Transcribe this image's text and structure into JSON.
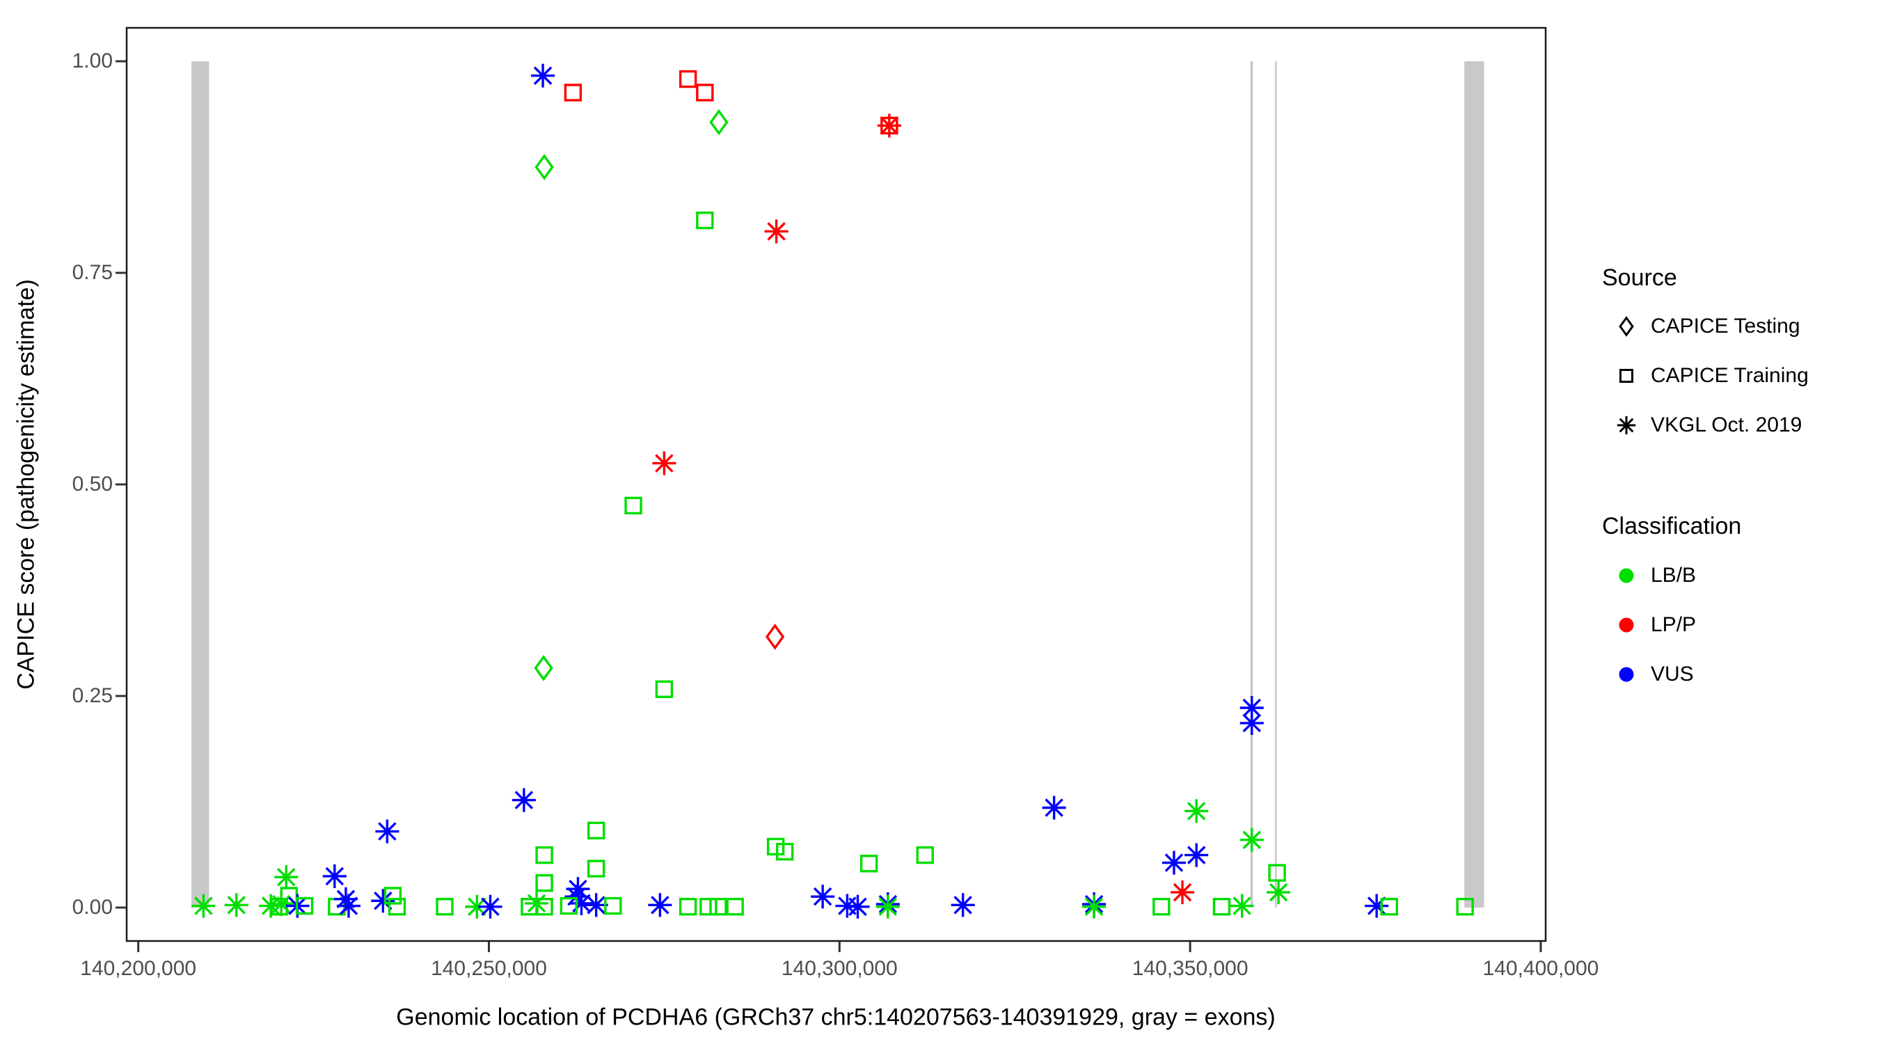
{
  "chart_data": {
    "type": "scatter",
    "title": "",
    "xlabel": "Genomic location of PCDHA6 (GRCh37 chr5:140207563-140391929, gray = exons)",
    "ylabel": "CAPICE score (pathogenicity estimate)",
    "xlim": [
      140198345,
      140400700
    ],
    "ylim": [
      -0.0395,
      1.0395
    ],
    "x_ticks": [
      {
        "value": 140200000,
        "label": "140,200,000"
      },
      {
        "value": 140250000,
        "label": "140,250,000"
      },
      {
        "value": 140300000,
        "label": "140,300,000"
      },
      {
        "value": 140350000,
        "label": "140,350,000"
      },
      {
        "value": 140400000,
        "label": "140,400,000"
      }
    ],
    "y_ticks": [
      {
        "value": 0.0,
        "label": "0.00"
      },
      {
        "value": 0.25,
        "label": "0.25"
      },
      {
        "value": 0.5,
        "label": "0.50"
      },
      {
        "value": 0.75,
        "label": "0.75"
      },
      {
        "value": 1.0,
        "label": "1.00"
      }
    ],
    "grid": false,
    "exon_color": "#c9c9c9",
    "exons": [
      {
        "start": 140207563,
        "end": 140210100
      },
      {
        "start": 140358600,
        "end": 140358950
      },
      {
        "start": 140362100,
        "end": 140362350
      },
      {
        "start": 140389100,
        "end": 140391929
      }
    ],
    "legend": {
      "position": "right",
      "source": {
        "title": "Source",
        "items": [
          {
            "label": "CAPICE Testing",
            "shape": "diamond"
          },
          {
            "label": "CAPICE Training",
            "shape": "square"
          },
          {
            "label": "VKGL Oct. 2019",
            "shape": "asterisk"
          }
        ]
      },
      "classification": {
        "title": "Classification",
        "items": [
          {
            "label": "LB/B",
            "color": "#00de00"
          },
          {
            "label": "LP/P",
            "color": "#ff0000"
          },
          {
            "label": "VUS",
            "color": "#0000ff"
          }
        ]
      }
    },
    "class_colors": {
      "LB/B": "#00de00",
      "LP/P": "#ff0000",
      "VUS": "#0000ff"
    },
    "source_shapes": {
      "testing": "diamond",
      "training": "square",
      "vkgl": "asterisk"
    },
    "points": [
      {
        "x": 140257700,
        "y": 0.983,
        "source": "vkgl",
        "class": "VUS"
      },
      {
        "x": 140262000,
        "y": 0.963,
        "source": "training",
        "class": "LP/P"
      },
      {
        "x": 140278400,
        "y": 0.979,
        "source": "training",
        "class": "LP/P"
      },
      {
        "x": 140280800,
        "y": 0.963,
        "source": "training",
        "class": "LP/P"
      },
      {
        "x": 140282800,
        "y": 0.928,
        "source": "testing",
        "class": "LB/B"
      },
      {
        "x": 140307100,
        "y": 0.924,
        "source": "training",
        "class": "LP/P"
      },
      {
        "x": 140307100,
        "y": 0.924,
        "source": "vkgl",
        "class": "LP/P"
      },
      {
        "x": 140257900,
        "y": 0.875,
        "source": "testing",
        "class": "LB/B"
      },
      {
        "x": 140280800,
        "y": 0.812,
        "source": "training",
        "class": "LB/B"
      },
      {
        "x": 140291000,
        "y": 0.799,
        "source": "vkgl",
        "class": "LP/P"
      },
      {
        "x": 140275000,
        "y": 0.525,
        "source": "vkgl",
        "class": "LP/P"
      },
      {
        "x": 140270600,
        "y": 0.475,
        "source": "training",
        "class": "LB/B"
      },
      {
        "x": 140257800,
        "y": 0.283,
        "source": "testing",
        "class": "LB/B"
      },
      {
        "x": 140275000,
        "y": 0.258,
        "source": "training",
        "class": "LB/B"
      },
      {
        "x": 140290800,
        "y": 0.32,
        "source": "testing",
        "class": "LP/P"
      },
      {
        "x": 140255000,
        "y": 0.127,
        "source": "vkgl",
        "class": "VUS"
      },
      {
        "x": 140235500,
        "y": 0.09,
        "source": "vkgl",
        "class": "VUS"
      },
      {
        "x": 140228000,
        "y": 0.037,
        "source": "vkgl",
        "class": "VUS"
      },
      {
        "x": 140221100,
        "y": 0.036,
        "source": "vkgl",
        "class": "LB/B"
      },
      {
        "x": 140209300,
        "y": 0.002,
        "source": "vkgl",
        "class": "LB/B"
      },
      {
        "x": 140214000,
        "y": 0.003,
        "source": "vkgl",
        "class": "LB/B"
      },
      {
        "x": 140218900,
        "y": 0.002,
        "source": "vkgl",
        "class": "LB/B"
      },
      {
        "x": 140220400,
        "y": 0.004,
        "source": "vkgl",
        "class": "LB/B"
      },
      {
        "x": 140221500,
        "y": 0.014,
        "source": "training",
        "class": "LB/B"
      },
      {
        "x": 140220100,
        "y": 0.001,
        "source": "training",
        "class": "LB/B"
      },
      {
        "x": 140222700,
        "y": 0.002,
        "source": "vkgl",
        "class": "VUS"
      },
      {
        "x": 140223700,
        "y": 0.002,
        "source": "training",
        "class": "LB/B"
      },
      {
        "x": 140228300,
        "y": 0.001,
        "source": "training",
        "class": "LB/B"
      },
      {
        "x": 140229600,
        "y": 0.01,
        "source": "vkgl",
        "class": "VUS"
      },
      {
        "x": 140230000,
        "y": 0.002,
        "source": "vkgl",
        "class": "VUS"
      },
      {
        "x": 140234900,
        "y": 0.008,
        "source": "vkgl",
        "class": "VUS"
      },
      {
        "x": 140236300,
        "y": 0.014,
        "source": "training",
        "class": "LB/B"
      },
      {
        "x": 140236900,
        "y": 0.001,
        "source": "training",
        "class": "LB/B"
      },
      {
        "x": 140243700,
        "y": 0.001,
        "source": "training",
        "class": "LB/B"
      },
      {
        "x": 140248300,
        "y": 0.001,
        "source": "vkgl",
        "class": "LB/B"
      },
      {
        "x": 140250200,
        "y": 0.001,
        "source": "vkgl",
        "class": "VUS"
      },
      {
        "x": 140255800,
        "y": 0.001,
        "source": "training",
        "class": "LB/B"
      },
      {
        "x": 140256800,
        "y": 0.005,
        "source": "vkgl",
        "class": "LB/B"
      },
      {
        "x": 140257900,
        "y": 0.001,
        "source": "training",
        "class": "LB/B"
      },
      {
        "x": 140257900,
        "y": 0.062,
        "source": "training",
        "class": "LB/B"
      },
      {
        "x": 140257900,
        "y": 0.029,
        "source": "training",
        "class": "LB/B"
      },
      {
        "x": 140265300,
        "y": 0.091,
        "source": "training",
        "class": "LB/B"
      },
      {
        "x": 140265300,
        "y": 0.046,
        "source": "training",
        "class": "LB/B"
      },
      {
        "x": 140262700,
        "y": 0.022,
        "source": "vkgl",
        "class": "VUS"
      },
      {
        "x": 140262500,
        "y": 0.013,
        "source": "vkgl",
        "class": "VUS"
      },
      {
        "x": 140263200,
        "y": 0.005,
        "source": "vkgl",
        "class": "VUS"
      },
      {
        "x": 140265300,
        "y": 0.003,
        "source": "vkgl",
        "class": "VUS"
      },
      {
        "x": 140261400,
        "y": 0.002,
        "source": "training",
        "class": "LB/B"
      },
      {
        "x": 140267700,
        "y": 0.002,
        "source": "training",
        "class": "LB/B"
      },
      {
        "x": 140274400,
        "y": 0.003,
        "source": "vkgl",
        "class": "VUS"
      },
      {
        "x": 140278400,
        "y": 0.001,
        "source": "training",
        "class": "LB/B"
      },
      {
        "x": 140281300,
        "y": 0.001,
        "source": "training",
        "class": "LB/B"
      },
      {
        "x": 140282700,
        "y": 0.001,
        "source": "training",
        "class": "LB/B"
      },
      {
        "x": 140285100,
        "y": 0.001,
        "source": "training",
        "class": "LB/B"
      },
      {
        "x": 140290900,
        "y": 0.072,
        "source": "training",
        "class": "LB/B"
      },
      {
        "x": 140292200,
        "y": 0.066,
        "source": "training",
        "class": "LB/B"
      },
      {
        "x": 140304200,
        "y": 0.052,
        "source": "training",
        "class": "LB/B"
      },
      {
        "x": 140312200,
        "y": 0.062,
        "source": "training",
        "class": "LB/B"
      },
      {
        "x": 140297600,
        "y": 0.013,
        "source": "vkgl",
        "class": "VUS"
      },
      {
        "x": 140301100,
        "y": 0.002,
        "source": "vkgl",
        "class": "VUS"
      },
      {
        "x": 140302600,
        "y": 0.001,
        "source": "vkgl",
        "class": "VUS"
      },
      {
        "x": 140306900,
        "y": 0.004,
        "source": "vkgl",
        "class": "VUS"
      },
      {
        "x": 140306900,
        "y": 0.001,
        "source": "vkgl",
        "class": "LB/B"
      },
      {
        "x": 140317600,
        "y": 0.003,
        "source": "vkgl",
        "class": "VUS"
      },
      {
        "x": 140330600,
        "y": 0.118,
        "source": "vkgl",
        "class": "VUS"
      },
      {
        "x": 140336300,
        "y": 0.004,
        "source": "vkgl",
        "class": "VUS"
      },
      {
        "x": 140336300,
        "y": 0.001,
        "source": "vkgl",
        "class": "LB/B"
      },
      {
        "x": 140345900,
        "y": 0.001,
        "source": "training",
        "class": "LB/B"
      },
      {
        "x": 140347700,
        "y": 0.053,
        "source": "vkgl",
        "class": "VUS"
      },
      {
        "x": 140348900,
        "y": 0.018,
        "source": "vkgl",
        "class": "LP/P"
      },
      {
        "x": 140350900,
        "y": 0.114,
        "source": "vkgl",
        "class": "LB/B"
      },
      {
        "x": 140350900,
        "y": 0.062,
        "source": "vkgl",
        "class": "VUS"
      },
      {
        "x": 140354500,
        "y": 0.001,
        "source": "training",
        "class": "LB/B"
      },
      {
        "x": 140357400,
        "y": 0.002,
        "source": "vkgl",
        "class": "LB/B"
      },
      {
        "x": 140358800,
        "y": 0.236,
        "source": "vkgl",
        "class": "VUS"
      },
      {
        "x": 140358800,
        "y": 0.218,
        "source": "vkgl",
        "class": "VUS"
      },
      {
        "x": 140358800,
        "y": 0.08,
        "source": "vkgl",
        "class": "LB/B"
      },
      {
        "x": 140362400,
        "y": 0.041,
        "source": "training",
        "class": "LB/B"
      },
      {
        "x": 140362600,
        "y": 0.018,
        "source": "vkgl",
        "class": "LB/B"
      },
      {
        "x": 140376600,
        "y": 0.002,
        "source": "vkgl",
        "class": "VUS"
      },
      {
        "x": 140378400,
        "y": 0.001,
        "source": "training",
        "class": "LB/B"
      },
      {
        "x": 140389200,
        "y": 0.001,
        "source": "training",
        "class": "LB/B"
      }
    ]
  }
}
